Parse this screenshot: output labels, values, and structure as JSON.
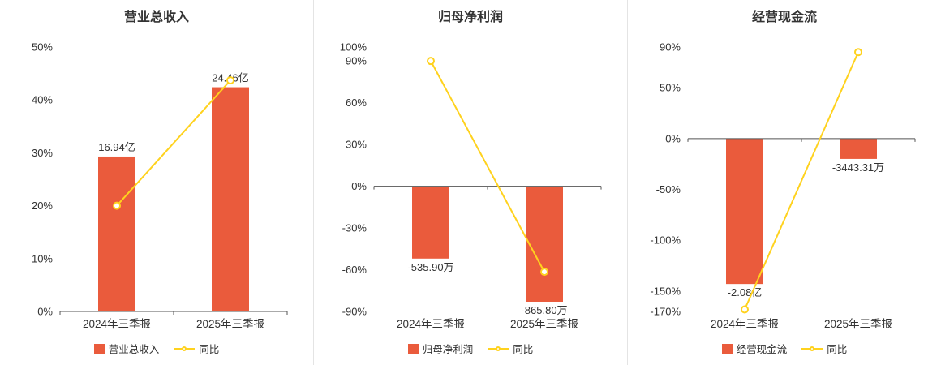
{
  "colors": {
    "bar": "#ea5b3c",
    "line": "#ffd21e",
    "marker_fill": "#ffffff",
    "axis": "#555555",
    "divider": "#e4e4e4",
    "text": "#333333"
  },
  "chart_data": [
    {
      "type": "bar",
      "title": "营业总收入",
      "categories": [
        "2024年三季报",
        "2025年三季报"
      ],
      "bar_series": {
        "name": "营业总收入",
        "labels": [
          "16.94亿",
          "24.46亿"
        ],
        "value_pct": [
          29.3,
          42.4
        ]
      },
      "line_series": {
        "name": "同比",
        "value_pct": [
          20.0,
          43.7
        ]
      },
      "y_axis": {
        "min": 0,
        "max": 50,
        "ticks": [
          50,
          40,
          30,
          20,
          10,
          0
        ],
        "unit": "%"
      },
      "legend_position": "bottom",
      "grid": false
    },
    {
      "type": "bar",
      "title": "归母净利润",
      "categories": [
        "2024年三季报",
        "2025年三季报"
      ],
      "bar_series": {
        "name": "归母净利润",
        "labels": [
          "-535.90万",
          "-865.80万"
        ],
        "value_pct": [
          -52,
          -83
        ]
      },
      "line_series": {
        "name": "同比",
        "value_pct": [
          90,
          -61.5
        ]
      },
      "y_axis": {
        "min": -90,
        "max": 100,
        "ticks": [
          100,
          90,
          60,
          30,
          0,
          -30,
          -60,
          -90
        ],
        "unit": "%"
      },
      "legend_position": "bottom",
      "grid": false
    },
    {
      "type": "bar",
      "title": "经营现金流",
      "categories": [
        "2024年三季报",
        "2025年三季报"
      ],
      "bar_series": {
        "name": "经营现金流",
        "labels": [
          "-2.08亿",
          "-3443.31万"
        ],
        "value_pct": [
          -143,
          -20
        ]
      },
      "line_series": {
        "name": "同比",
        "value_pct": [
          -168,
          85
        ]
      },
      "y_axis": {
        "min": -170,
        "max": 90,
        "ticks": [
          90,
          50,
          0,
          -50,
          -100,
          -150,
          -170
        ],
        "unit": "%"
      },
      "legend_position": "bottom",
      "grid": false
    }
  ]
}
